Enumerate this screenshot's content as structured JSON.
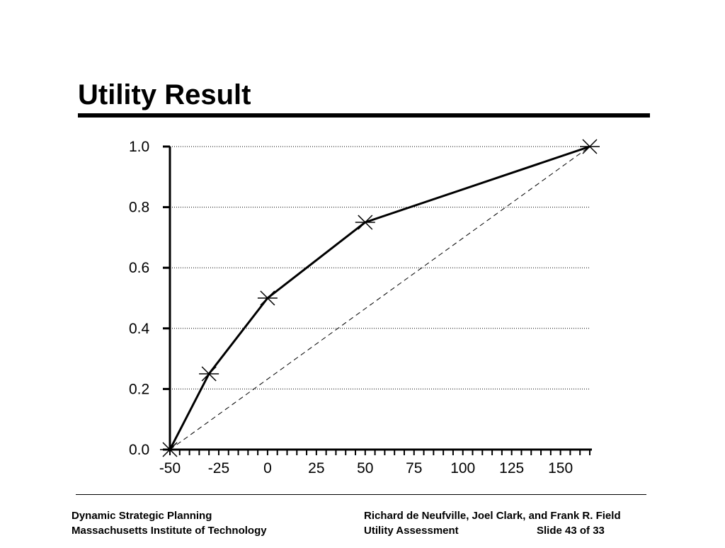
{
  "slide": {
    "title": "Utility Result"
  },
  "chart_data": {
    "type": "line",
    "title": "",
    "xlabel": "",
    "ylabel": "",
    "xlim": [
      -50,
      165
    ],
    "ylim": [
      0,
      1.0
    ],
    "x_ticks": [
      "-50",
      "-25",
      "0",
      "25",
      "50",
      "75",
      "100",
      "125",
      "150"
    ],
    "x_tick_values": [
      -50,
      -25,
      0,
      25,
      50,
      75,
      100,
      125,
      150
    ],
    "y_ticks": [
      "0.0",
      "0.2",
      "0.4",
      "0.6",
      "0.8",
      "1.0"
    ],
    "y_tick_values": [
      0.0,
      0.2,
      0.4,
      0.6,
      0.8,
      1.0
    ],
    "grid": "horizontal dotted",
    "series": [
      {
        "style": "solid with x markers",
        "x": [
          -50,
          -30,
          0,
          50,
          165
        ],
        "y": [
          0.0,
          0.25,
          0.5,
          0.75,
          1.0
        ]
      },
      {
        "style": "dashed reference line",
        "x": [
          -50,
          165
        ],
        "y": [
          0.0,
          1.0
        ]
      }
    ]
  },
  "footer": {
    "left_line1": "Dynamic Strategic Planning",
    "left_line2": "Massachusetts Institute of Technology",
    "right_line1": "Richard de Neufville, Joel Clark, and Frank R. Field",
    "right_line2a": "Utility Assessment",
    "right_line2b": "Slide 43 of 33"
  }
}
